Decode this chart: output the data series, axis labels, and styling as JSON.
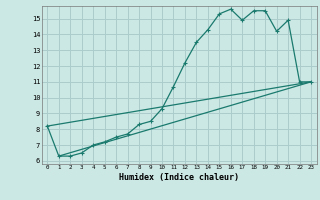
{
  "title": "",
  "xlabel": "Humidex (Indice chaleur)",
  "bg_color": "#cce8e4",
  "grid_color": "#aaccca",
  "line_color": "#1a7a6e",
  "xlim": [
    -0.5,
    23.5
  ],
  "ylim": [
    5.8,
    15.8
  ],
  "yticks": [
    6,
    7,
    8,
    9,
    10,
    11,
    12,
    13,
    14,
    15
  ],
  "xticks": [
    0,
    1,
    2,
    3,
    4,
    5,
    6,
    7,
    8,
    9,
    10,
    11,
    12,
    13,
    14,
    15,
    16,
    17,
    18,
    19,
    20,
    21,
    22,
    23
  ],
  "series1_x": [
    0,
    1,
    2,
    3,
    4,
    5,
    6,
    7,
    8,
    9,
    10,
    11,
    12,
    13,
    14,
    15,
    16,
    17,
    18,
    19,
    20,
    21,
    22,
    23
  ],
  "series1_y": [
    8.2,
    6.3,
    6.3,
    6.5,
    7.0,
    7.2,
    7.5,
    7.7,
    8.3,
    8.5,
    9.3,
    10.7,
    12.2,
    13.5,
    14.3,
    15.3,
    15.6,
    14.9,
    15.5,
    15.5,
    14.2,
    14.9,
    11.0,
    11.0
  ],
  "series2_x": [
    1,
    23
  ],
  "series2_y": [
    6.3,
    11.0
  ],
  "series3_x": [
    0,
    23
  ],
  "series3_y": [
    8.2,
    11.0
  ]
}
